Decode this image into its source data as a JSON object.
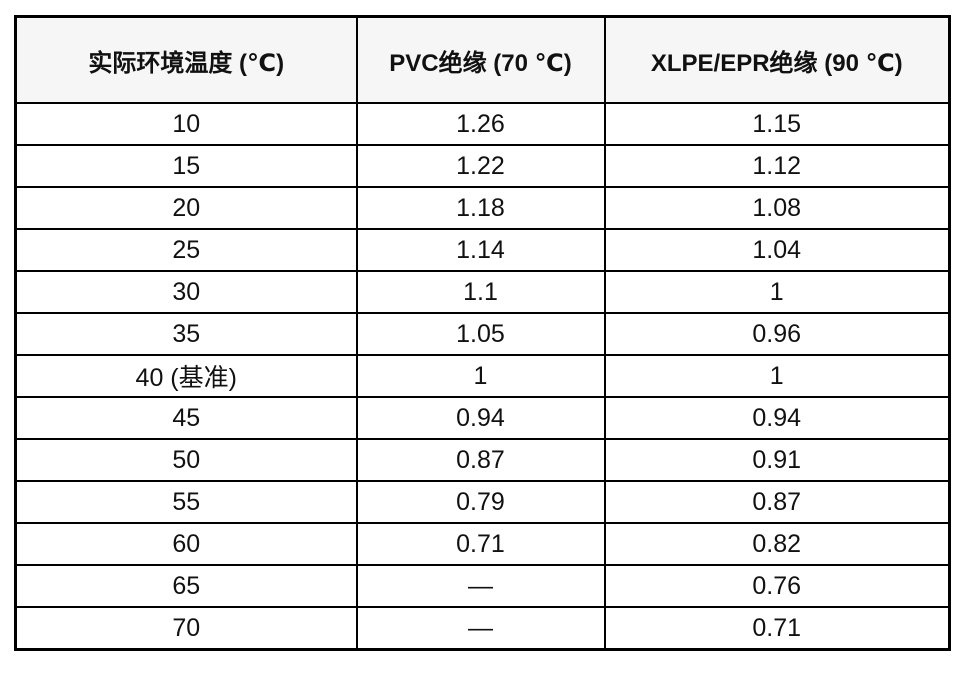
{
  "table": {
    "name": "ambient-temperature-correction-factors",
    "headers": [
      "实际环境温度 (℃)",
      "PVC绝缘 (70 ℃)",
      "XLPE/EPR绝缘 (90 ℃)"
    ],
    "rows": [
      [
        "10",
        "1.26",
        "1.15"
      ],
      [
        "15",
        "1.22",
        "1.12"
      ],
      [
        "20",
        "1.18",
        "1.08"
      ],
      [
        "25",
        "1.14",
        "1.04"
      ],
      [
        "30",
        "1.1",
        "1"
      ],
      [
        "35",
        "1.05",
        "0.96"
      ],
      [
        "40 (基准)",
        "1",
        "1"
      ],
      [
        "45",
        "0.94",
        "0.94"
      ],
      [
        "50",
        "0.87",
        "0.91"
      ],
      [
        "55",
        "0.79",
        "0.87"
      ],
      [
        "60",
        "0.71",
        "0.82"
      ],
      [
        "65",
        "—",
        "0.76"
      ],
      [
        "70",
        "—",
        "0.71"
      ]
    ]
  },
  "colors": {
    "border": "#000000",
    "header_background": "#f6f6f6",
    "text": "#111111",
    "page_background": "#ffffff"
  }
}
